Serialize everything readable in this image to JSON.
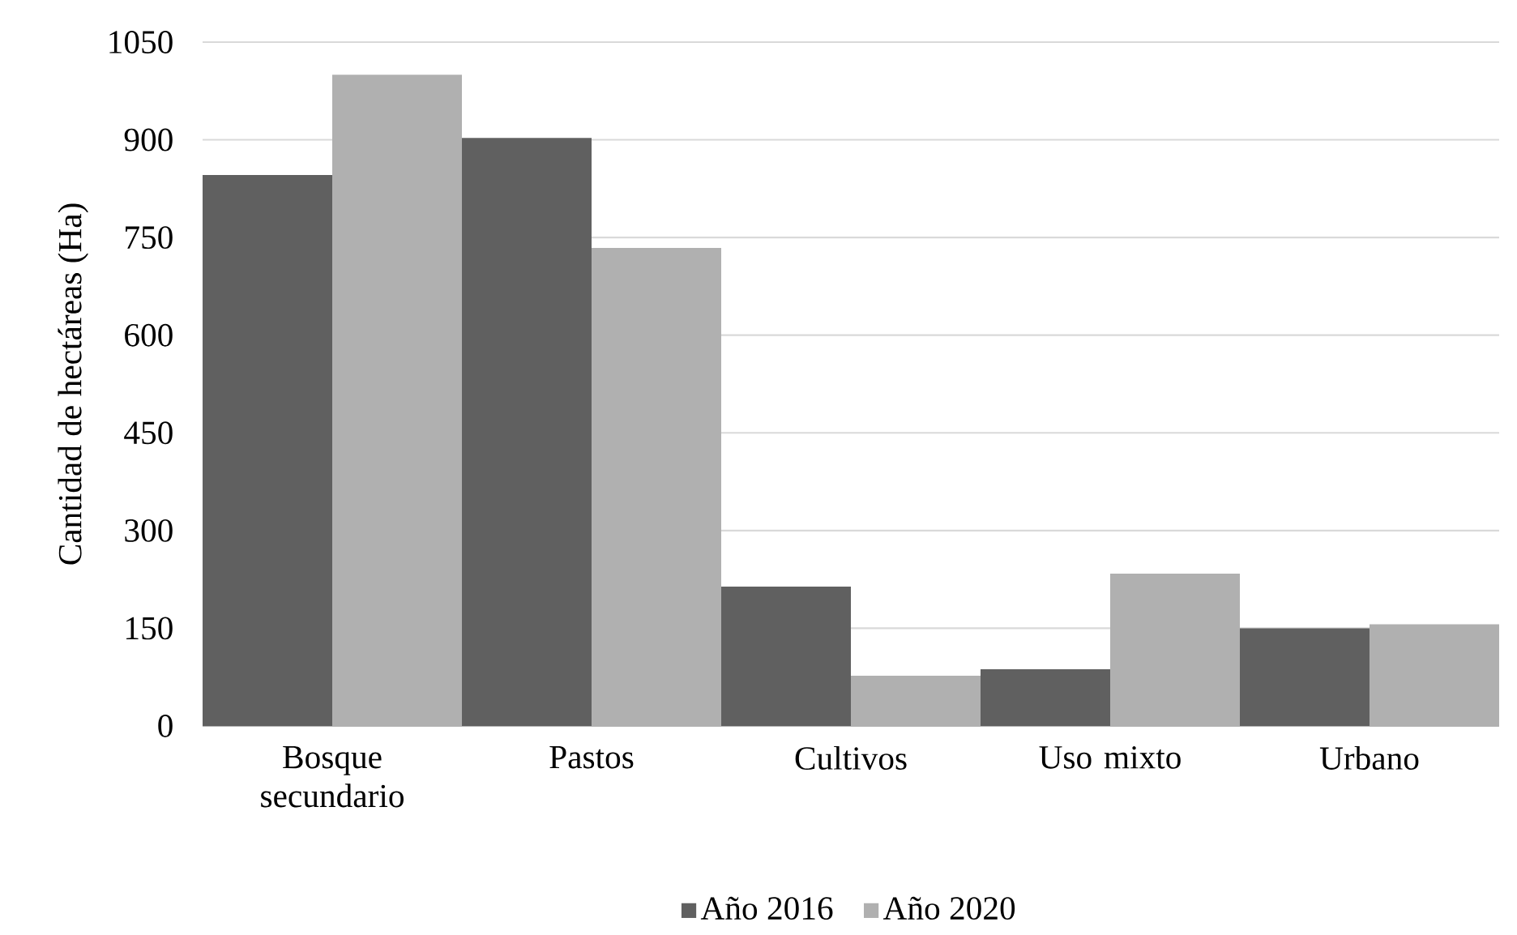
{
  "chart_data": {
    "type": "bar",
    "ylabel": "Cantidad de hectáreas (Ha)",
    "categories": [
      "Bosque secundario",
      "Pastos",
      "Cultivos",
      "Uso mixto",
      "Urbano"
    ],
    "series": [
      {
        "name": "Año 2016",
        "color": "#606060",
        "values": [
          846,
          903,
          214,
          87,
          150
        ]
      },
      {
        "name": "Año 2020",
        "color": "#b0b0b0",
        "values": [
          1000,
          734,
          77,
          234,
          156
        ]
      }
    ],
    "ylim": [
      0,
      1050
    ],
    "yticks": [
      0,
      150,
      300,
      450,
      600,
      750,
      900,
      1050
    ],
    "grid": "y",
    "legend": "bottom"
  }
}
